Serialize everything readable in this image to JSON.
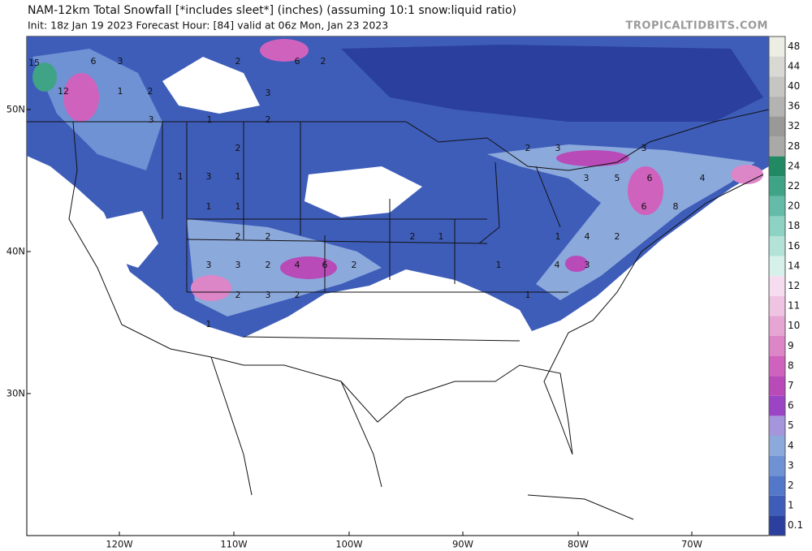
{
  "header": {
    "title": "NAM-12km Total Snowfall [*includes sleet*] (inches) (assuming 10:1 snow:liquid ratio)",
    "subtitle": "Init: 18z Jan 19 2023   Forecast Hour: [84]   valid at 06z Mon, Jan 23 2023",
    "watermark": "TROPICALTIDBITS.COM"
  },
  "map": {
    "lat_labels": [
      "50N",
      "40N",
      "30N"
    ],
    "lon_labels": [
      "120W",
      "110W",
      "100W",
      "90W",
      "80W",
      "70W"
    ],
    "contour_labels": [
      "15",
      "12",
      "6",
      "3",
      "1",
      "2",
      "3",
      "2",
      "6",
      "2",
      "3",
      "2",
      "1",
      "2",
      "1",
      "3",
      "1",
      "1",
      "1",
      "2",
      "2",
      "3",
      "3",
      "2",
      "4",
      "6",
      "2",
      "2",
      "3",
      "2",
      "1",
      "2",
      "1",
      "2",
      "3",
      "3",
      "3",
      "5",
      "6",
      "4",
      "4",
      "2",
      "1",
      "6",
      "8",
      "4",
      "3",
      "1",
      "1"
    ]
  },
  "colorbar": {
    "levels": [
      0.1,
      1,
      2,
      3,
      4,
      5,
      6,
      7,
      8,
      9,
      10,
      11,
      12,
      14,
      16,
      18,
      20,
      22,
      24,
      28,
      32,
      36,
      40,
      44,
      48
    ],
    "colors": [
      "#2b3f9e",
      "#3e5db9",
      "#5478c9",
      "#6f92d4",
      "#8ca9dc",
      "#a596dc",
      "#9b45c4",
      "#b84bb8",
      "#cf62bd",
      "#dc86c8",
      "#e6a5d3",
      "#eec4e2",
      "#f5dcee",
      "#d6f0ea",
      "#b3e3d7",
      "#8dd2c2",
      "#64bba7",
      "#3fa386",
      "#228a62",
      "#a9aaa8",
      "#999a98",
      "#b3b4b1",
      "#c5c6c2",
      "#d8d9d3",
      "#ecede3"
    ]
  }
}
